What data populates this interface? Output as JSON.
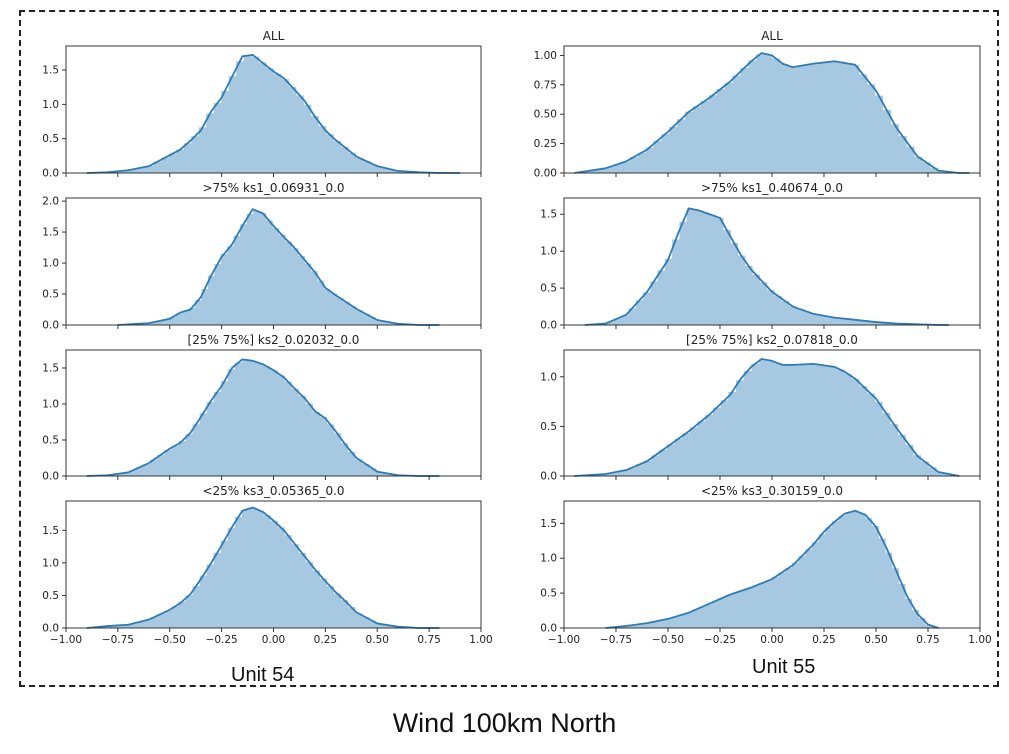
{
  "figure": {
    "title": "Wind 100km North",
    "unit_labels": [
      "Unit 54",
      "Unit 55"
    ]
  },
  "colors": {
    "hist_fill": "#a6c8e0",
    "kde_line": "#2f7bb4",
    "axis": "#222222"
  },
  "chart_data": [
    {
      "type": "area",
      "title": "ALL",
      "xlim": [
        -1.0,
        1.0
      ],
      "ylim": [
        0,
        1.85
      ],
      "yticks": [
        0.0,
        0.5,
        1.0,
        1.5
      ],
      "xticks_labeled": false,
      "grid": false,
      "x": [
        -0.9,
        -0.8,
        -0.7,
        -0.6,
        -0.5,
        -0.45,
        -0.4,
        -0.35,
        -0.3,
        -0.25,
        -0.2,
        -0.15,
        -0.1,
        -0.05,
        0.0,
        0.05,
        0.1,
        0.15,
        0.2,
        0.25,
        0.3,
        0.35,
        0.4,
        0.5,
        0.6,
        0.7,
        0.8,
        0.9
      ],
      "y": [
        0.0,
        0.01,
        0.04,
        0.1,
        0.26,
        0.34,
        0.47,
        0.62,
        0.9,
        1.1,
        1.4,
        1.7,
        1.72,
        1.6,
        1.48,
        1.38,
        1.22,
        1.05,
        0.82,
        0.62,
        0.48,
        0.36,
        0.24,
        0.1,
        0.03,
        0.01,
        0.0,
        0.0
      ]
    },
    {
      "type": "area",
      "title": "ALL",
      "xlim": [
        -1.0,
        1.0
      ],
      "ylim": [
        0,
        1.08
      ],
      "yticks": [
        0.0,
        0.25,
        0.5,
        0.75,
        1.0
      ],
      "xticks_labeled": false,
      "grid": false,
      "x": [
        -0.95,
        -0.8,
        -0.7,
        -0.6,
        -0.5,
        -0.4,
        -0.3,
        -0.2,
        -0.1,
        -0.05,
        0.0,
        0.05,
        0.1,
        0.2,
        0.3,
        0.4,
        0.5,
        0.6,
        0.7,
        0.8,
        0.9,
        0.95
      ],
      "y": [
        0.0,
        0.04,
        0.1,
        0.2,
        0.35,
        0.52,
        0.64,
        0.78,
        0.95,
        1.02,
        1.0,
        0.93,
        0.9,
        0.93,
        0.95,
        0.92,
        0.7,
        0.38,
        0.14,
        0.02,
        0.0,
        0.0
      ]
    },
    {
      "type": "area",
      "title": ">75% ks1_0.06931_0.0",
      "xlim": [
        -1.0,
        1.0
      ],
      "ylim": [
        0,
        2.05
      ],
      "yticks": [
        0.0,
        0.5,
        1.0,
        1.5,
        2.0
      ],
      "xticks_labeled": false,
      "grid": false,
      "x": [
        -0.75,
        -0.6,
        -0.5,
        -0.45,
        -0.4,
        -0.35,
        -0.3,
        -0.25,
        -0.2,
        -0.15,
        -0.1,
        -0.05,
        0.0,
        0.05,
        0.1,
        0.15,
        0.2,
        0.25,
        0.3,
        0.4,
        0.5,
        0.6,
        0.7,
        0.8
      ],
      "y": [
        0.0,
        0.03,
        0.1,
        0.2,
        0.25,
        0.45,
        0.8,
        1.1,
        1.3,
        1.6,
        1.87,
        1.8,
        1.6,
        1.42,
        1.25,
        1.05,
        0.85,
        0.6,
        0.48,
        0.26,
        0.08,
        0.02,
        0.0,
        0.0
      ]
    },
    {
      "type": "area",
      "title": ">75% ks1_0.40674_0.0",
      "xlim": [
        -1.0,
        1.0
      ],
      "ylim": [
        0,
        1.72
      ],
      "yticks": [
        0.0,
        0.5,
        1.0,
        1.5
      ],
      "xticks_labeled": false,
      "grid": false,
      "x": [
        -0.9,
        -0.8,
        -0.7,
        -0.6,
        -0.5,
        -0.45,
        -0.4,
        -0.35,
        -0.3,
        -0.25,
        -0.2,
        -0.15,
        -0.1,
        -0.05,
        0.0,
        0.05,
        0.1,
        0.2,
        0.3,
        0.4,
        0.5,
        0.6,
        0.7,
        0.8,
        0.85
      ],
      "y": [
        0.0,
        0.02,
        0.14,
        0.45,
        0.88,
        1.25,
        1.58,
        1.55,
        1.5,
        1.45,
        1.2,
        0.95,
        0.75,
        0.6,
        0.45,
        0.35,
        0.25,
        0.15,
        0.1,
        0.07,
        0.04,
        0.02,
        0.01,
        0.0,
        0.0
      ]
    },
    {
      "type": "area",
      "title": "[25% 75%] ks2_0.02032_0.0",
      "xlim": [
        -1.0,
        1.0
      ],
      "ylim": [
        0,
        1.75
      ],
      "yticks": [
        0.0,
        0.5,
        1.0,
        1.5
      ],
      "xticks_labeled": false,
      "grid": false,
      "x": [
        -0.9,
        -0.8,
        -0.7,
        -0.6,
        -0.5,
        -0.45,
        -0.4,
        -0.35,
        -0.3,
        -0.25,
        -0.2,
        -0.15,
        -0.1,
        -0.05,
        0.0,
        0.05,
        0.1,
        0.15,
        0.2,
        0.25,
        0.3,
        0.35,
        0.4,
        0.5,
        0.6,
        0.7,
        0.8
      ],
      "y": [
        0.0,
        0.01,
        0.05,
        0.18,
        0.38,
        0.46,
        0.6,
        0.82,
        1.05,
        1.25,
        1.5,
        1.62,
        1.6,
        1.55,
        1.47,
        1.37,
        1.22,
        1.08,
        0.9,
        0.8,
        0.62,
        0.42,
        0.25,
        0.06,
        0.01,
        0.0,
        0.0
      ]
    },
    {
      "type": "area",
      "title": "[25% 75%] ks2_0.07818_0.0",
      "xlim": [
        -1.0,
        1.0
      ],
      "ylim": [
        0,
        1.27
      ],
      "yticks": [
        0.0,
        0.5,
        1.0
      ],
      "xticks_labeled": false,
      "grid": false,
      "x": [
        -0.95,
        -0.8,
        -0.7,
        -0.6,
        -0.5,
        -0.4,
        -0.3,
        -0.2,
        -0.15,
        -0.1,
        -0.05,
        0.0,
        0.05,
        0.1,
        0.2,
        0.3,
        0.35,
        0.4,
        0.5,
        0.6,
        0.7,
        0.8,
        0.9
      ],
      "y": [
        0.0,
        0.02,
        0.06,
        0.15,
        0.3,
        0.45,
        0.62,
        0.82,
        0.98,
        1.1,
        1.18,
        1.16,
        1.12,
        1.12,
        1.13,
        1.1,
        1.05,
        0.98,
        0.78,
        0.48,
        0.2,
        0.04,
        0.0
      ]
    },
    {
      "type": "area",
      "title": "<25% ks3_0.05365_0.0",
      "xlim": [
        -1.0,
        1.0
      ],
      "ylim": [
        0,
        1.95
      ],
      "yticks": [
        0.0,
        0.5,
        1.0,
        1.5
      ],
      "xticks_labeled": true,
      "xticks": [
        -1.0,
        -0.75,
        -0.5,
        -0.25,
        0.0,
        0.25,
        0.5,
        0.75,
        1.0
      ],
      "grid": false,
      "x": [
        -0.9,
        -0.8,
        -0.7,
        -0.6,
        -0.5,
        -0.45,
        -0.4,
        -0.35,
        -0.3,
        -0.25,
        -0.2,
        -0.15,
        -0.1,
        -0.05,
        0.0,
        0.05,
        0.1,
        0.15,
        0.2,
        0.25,
        0.3,
        0.35,
        0.4,
        0.5,
        0.6,
        0.7,
        0.8
      ],
      "y": [
        0.0,
        0.03,
        0.05,
        0.13,
        0.28,
        0.38,
        0.52,
        0.75,
        1.0,
        1.27,
        1.55,
        1.8,
        1.85,
        1.78,
        1.65,
        1.5,
        1.3,
        1.1,
        0.9,
        0.72,
        0.55,
        0.4,
        0.24,
        0.07,
        0.02,
        0.0,
        0.0
      ]
    },
    {
      "type": "area",
      "title": "<25% ks3_0.30159_0.0",
      "xlim": [
        -1.0,
        1.0
      ],
      "ylim": [
        0,
        1.82
      ],
      "yticks": [
        0.0,
        0.5,
        1.0,
        1.5
      ],
      "xticks_labeled": true,
      "xticks": [
        -1.0,
        -0.75,
        -0.5,
        -0.25,
        0.0,
        0.25,
        0.5,
        0.75,
        1.0
      ],
      "grid": false,
      "x": [
        -0.8,
        -0.7,
        -0.6,
        -0.5,
        -0.4,
        -0.3,
        -0.2,
        -0.1,
        0.0,
        0.05,
        0.1,
        0.2,
        0.25,
        0.3,
        0.35,
        0.4,
        0.45,
        0.5,
        0.55,
        0.6,
        0.65,
        0.7,
        0.75,
        0.8
      ],
      "y": [
        0.0,
        0.03,
        0.07,
        0.13,
        0.22,
        0.35,
        0.48,
        0.58,
        0.7,
        0.8,
        0.9,
        1.2,
        1.38,
        1.52,
        1.64,
        1.68,
        1.62,
        1.45,
        1.15,
        0.8,
        0.45,
        0.2,
        0.05,
        0.0
      ]
    }
  ]
}
